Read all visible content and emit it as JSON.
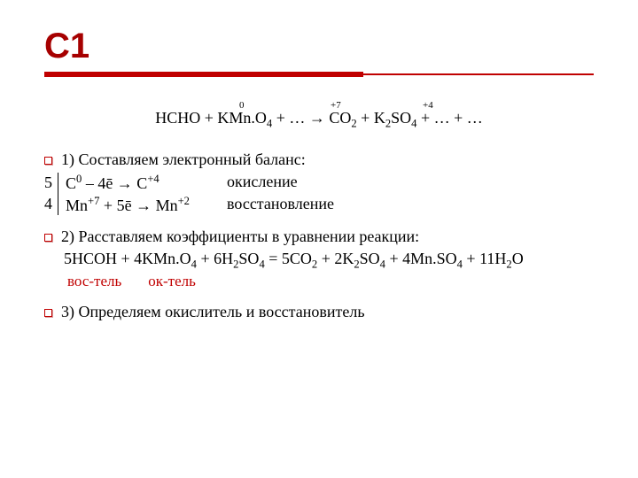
{
  "title": "С1",
  "colors": {
    "accent": "#c00000",
    "titleColor": "#a60000",
    "text": "#000000",
    "bg": "#ffffff"
  },
  "oxidation": {
    "c": "0",
    "mn": "+7",
    "co": "+4"
  },
  "equation": "HCHO + KMn.O4 + … → CO2 + K2SO4 + … + …",
  "eq_parts": {
    "p1": "HCHO + KMn.O",
    "s1": "4",
    "p2": " + … → CO",
    "s2": "2",
    "p3": " + K",
    "s3": "2",
    "p4": "SO",
    "s4": "4",
    "p5": " + … + …"
  },
  "step1": {
    "num": "1)",
    "text": "Составляем электронный баланс:"
  },
  "balance": {
    "coeff1": "5",
    "coeff2": "4",
    "r1": {
      "lhs1": "C",
      "sup1": "0",
      "arrow": " – 4ē → C",
      "sup2": "+4",
      "label": "окисление"
    },
    "r2": {
      "lhs1": "Mn",
      "sup1": "+7",
      "arrow": " + 5ē → Mn",
      "sup2": "+2",
      "label": "восстановление"
    }
  },
  "step2": {
    "num": "2)",
    "text": "Расставляем коэффициенты в уравнении реакции:"
  },
  "full_eq": {
    "a": "5HCOH + 4KMn.O",
    "s1": "4",
    "b": " + 6H",
    "s2": "2",
    "c": "SO",
    "s3": "4",
    "d": " = 5CO",
    "s5": "2",
    "e": " + 2K",
    "s6": "2",
    "f": "SO",
    "s7": "4",
    "g": " + 4Mn.SO",
    "s8": "4",
    "h": " + 11H",
    "s9": "2",
    "i": "O"
  },
  "labels": {
    "red": "вос-тель",
    "ox": "ок-тель"
  },
  "step3": {
    "num": "3)",
    "text": "Определяем окислитель и восстановитель"
  }
}
